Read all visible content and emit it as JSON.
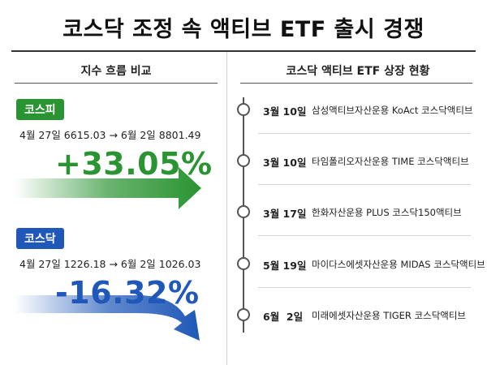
{
  "title": "코스닥 조정 속 액티브 ETF 출시 경쟁",
  "left_section": {
    "title": "지수 흐름 비교",
    "kospi": {
      "badge": "코스피",
      "period": "4월 27일 6615.03 → 6월 2일 8801.49",
      "change": "+33.05%",
      "color": "#2a9332"
    },
    "kosdaq": {
      "badge": "코스닥",
      "period": "4월 27일 1226.18 → 6월 2일 1026.03",
      "change": "-16.32%",
      "color": "#1f58b8"
    }
  },
  "right_section": {
    "title": "코스닥 액티브 ETF 상장 현황",
    "items": [
      {
        "date": "3월 10일",
        "text": "삼성액티브자산운용 KoAct 코스닥액티브"
      },
      {
        "date": "3월 10일",
        "text": "타임폴리오자산운용 TIME 코스닥액티브"
      },
      {
        "date": "3월 17일",
        "text": "한화자산운용 PLUS 코스닥150액티브"
      },
      {
        "date": "5월 19일",
        "text": "마이다스에셋자산운용 MIDAS 코스닥액티브"
      },
      {
        "date": "6월  2일",
        "text": "미래에셋자산운용 TIGER 코스닥액티브"
      }
    ]
  }
}
